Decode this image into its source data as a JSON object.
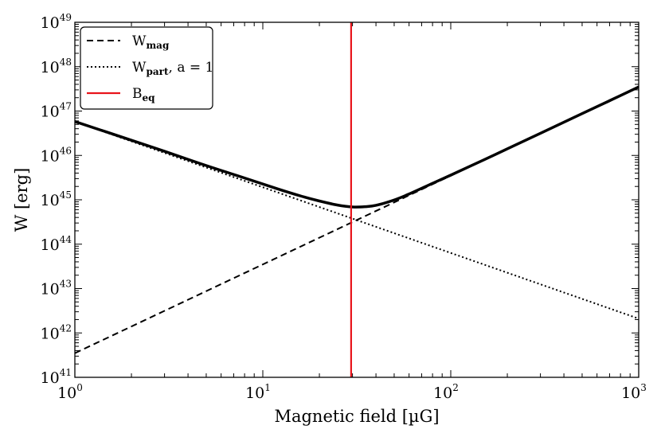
{
  "chart_data": {
    "type": "line",
    "xlabel": "Magnetic field [µG]",
    "ylabel": "W [erg]",
    "x_scale": "log",
    "y_scale": "log",
    "xlim": [
      1,
      1000
    ],
    "ylim": [
      1e+41,
      1e+49
    ],
    "grid": false,
    "legend_position": "top-left",
    "x_ticks": [
      {
        "base": "10",
        "exp": "0",
        "value": 1
      },
      {
        "base": "10",
        "exp": "1",
        "value": 10
      },
      {
        "base": "10",
        "exp": "2",
        "value": 100
      },
      {
        "base": "10",
        "exp": "3",
        "value": 1000
      }
    ],
    "y_ticks": [
      {
        "base": "10",
        "exp": "41",
        "value": 41
      },
      {
        "base": "10",
        "exp": "42",
        "value": 42
      },
      {
        "base": "10",
        "exp": "43",
        "value": 43
      },
      {
        "base": "10",
        "exp": "44",
        "value": 44
      },
      {
        "base": "10",
        "exp": "45",
        "value": 45
      },
      {
        "base": "10",
        "exp": "46",
        "value": 46
      },
      {
        "base": "10",
        "exp": "47",
        "value": 47
      },
      {
        "base": "10",
        "exp": "48",
        "value": 48
      },
      {
        "base": "10",
        "exp": "49",
        "value": 49
      }
    ],
    "series": [
      {
        "name_main": "W",
        "name_sub": "mag",
        "name_extra": "",
        "style": "dashed",
        "color": "#000000",
        "x": [
          1,
          1000
        ],
        "y": [
          3.5e+41,
          3.5e+47
        ]
      },
      {
        "name_main": "W",
        "name_sub": "part",
        "name_extra": ", a = 1",
        "style": "dotted",
        "color": "#000000",
        "x": [
          1,
          1000
        ],
        "y": [
          5.8e+46,
          2.1e+42
        ]
      },
      {
        "name_main": "",
        "name_sub": "",
        "name_extra": "",
        "style": "solid-thick",
        "color": "#000000",
        "x": [
          1,
          2,
          3,
          5,
          8,
          12,
          16,
          20,
          25,
          30,
          35,
          40,
          50,
          60,
          80,
          100,
          150,
          200,
          300,
          500,
          700,
          1000
        ],
        "y": [
          5.8e+46,
          2.2e+46,
          1.24e+46,
          5.9e+45,
          3.1e+45,
          1.76e+45,
          1.21e+45,
          9.4e+44,
          7.6e+44,
          6.9e+44,
          7e+44,
          7.5e+44,
          9.9e+44,
          1.35e+45,
          2.35e+45,
          3.6e+45,
          7.95e+45,
          1.41e+46,
          3.15e+46,
          8.75e+46,
          1.71e+47,
          3.5e+47
        ]
      },
      {
        "name_main": "B",
        "name_sub": "eq",
        "name_extra": "",
        "style": "vertical",
        "color": "#e8141b",
        "x": [
          29.5,
          29.5
        ],
        "y": [
          1e+41,
          1e+49
        ]
      }
    ]
  }
}
